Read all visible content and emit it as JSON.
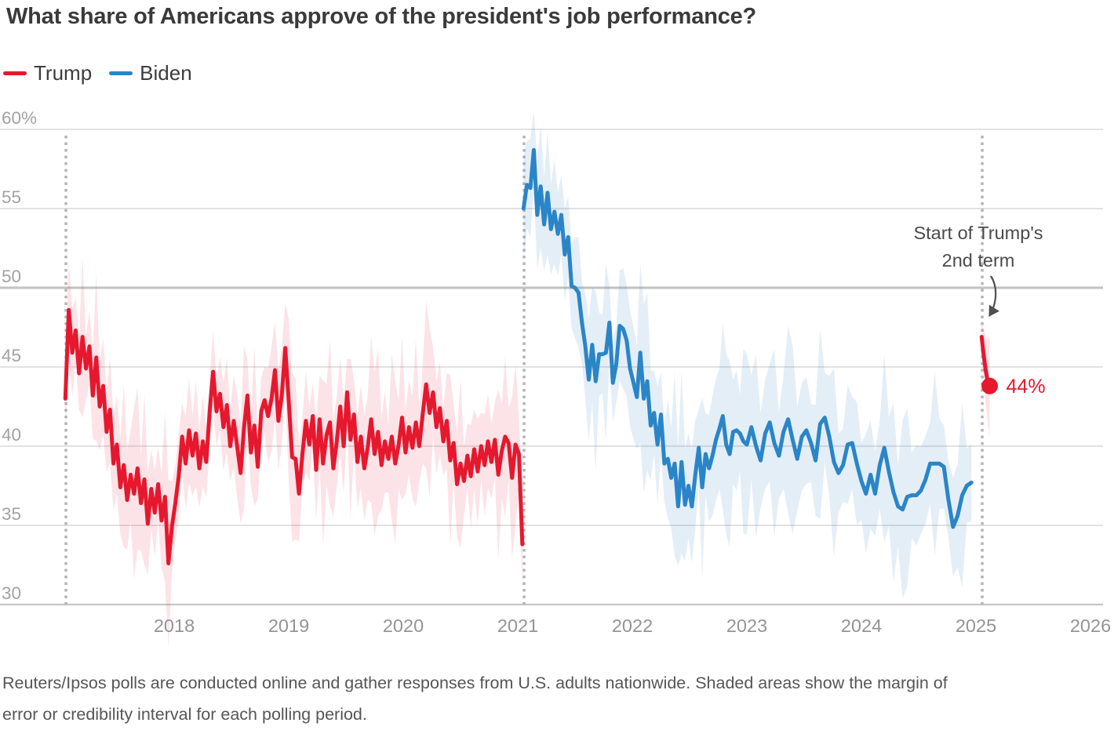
{
  "title": "What share of Americans approve of the president's job performance?",
  "legend": {
    "items": [
      {
        "label": "Trump",
        "color": "#e5182e"
      },
      {
        "label": "Biden",
        "color": "#2a85c7"
      }
    ]
  },
  "footer": {
    "lines": [
      "Reuters/Ipsos polls are conducted online and gather responses from U.S. adults nationwide. Shaded areas show the margin of",
      "error or credibility interval for each polling period."
    ]
  },
  "chart_data": {
    "type": "line",
    "title": "What share of Americans approve of the president's job performance?",
    "xlabel": "",
    "ylabel": "",
    "xlim": [
      2016.97,
      2026.1
    ],
    "ylim": [
      30,
      60
    ],
    "grid": "horizontal",
    "legend_position": "top-left",
    "y_ticks": [
      {
        "value": 60,
        "label": "60%"
      },
      {
        "value": 55,
        "label": "55"
      },
      {
        "value": 50,
        "label": "50"
      },
      {
        "value": 45,
        "label": "45"
      },
      {
        "value": 40,
        "label": "40"
      },
      {
        "value": 35,
        "label": "35"
      },
      {
        "value": 30,
        "label": "30"
      }
    ],
    "x_ticks": [
      {
        "value": 2018,
        "label": "2018"
      },
      {
        "value": 2019,
        "label": "2019"
      },
      {
        "value": 2020,
        "label": "2020"
      },
      {
        "value": 2021,
        "label": "2021"
      },
      {
        "value": 2022,
        "label": "2022"
      },
      {
        "value": 2023,
        "label": "2023"
      },
      {
        "value": 2024,
        "label": "2024"
      },
      {
        "value": 2025,
        "label": "2025"
      },
      {
        "value": 2026,
        "label": "2026"
      }
    ],
    "term_start_lines": [
      2017.055,
      2021.055,
      2025.055
    ],
    "annotation": {
      "text_lines": [
        "Start of Trump's",
        "2nd term"
      ],
      "points_to": "start of Trump 2nd-term series",
      "color": "#4a4a4a"
    },
    "end_label": {
      "text": "44%",
      "value": 44,
      "color": "#e5182e"
    },
    "note": "Shaded areas show the margin of error or credibility interval for each polling period.",
    "series": [
      {
        "name": "Trump",
        "color": "#e5182e",
        "band_color": "rgba(232,60,85,0.14)",
        "band": {
          "base": 2.0,
          "jitter": 1.7,
          "grow": 0
        },
        "points": [
          [
            2017.05,
            43.0
          ],
          [
            2017.08,
            48.6
          ],
          [
            2017.11,
            45.9
          ],
          [
            2017.14,
            47.3
          ],
          [
            2017.17,
            44.6
          ],
          [
            2017.2,
            46.9
          ],
          [
            2017.23,
            44.9
          ],
          [
            2017.26,
            46.3
          ],
          [
            2017.29,
            43.2
          ],
          [
            2017.32,
            45.6
          ],
          [
            2017.35,
            42.5
          ],
          [
            2017.38,
            43.8
          ],
          [
            2017.41,
            40.9
          ],
          [
            2017.44,
            42.3
          ],
          [
            2017.47,
            38.9
          ],
          [
            2017.5,
            40.1
          ],
          [
            2017.53,
            37.4
          ],
          [
            2017.56,
            38.8
          ],
          [
            2017.59,
            36.6
          ],
          [
            2017.62,
            38.2
          ],
          [
            2017.65,
            37.0
          ],
          [
            2017.68,
            38.6
          ],
          [
            2017.71,
            36.4
          ],
          [
            2017.74,
            37.9
          ],
          [
            2017.77,
            35.1
          ],
          [
            2017.8,
            37.3
          ],
          [
            2017.83,
            35.8
          ],
          [
            2017.86,
            37.6
          ],
          [
            2017.89,
            35.3
          ],
          [
            2017.92,
            36.8
          ],
          [
            2017.95,
            32.6
          ],
          [
            2017.98,
            34.9
          ],
          [
            2018.01,
            36.4
          ],
          [
            2018.04,
            38.1
          ],
          [
            2018.07,
            40.6
          ],
          [
            2018.1,
            38.9
          ],
          [
            2018.13,
            41.0
          ],
          [
            2018.16,
            39.4
          ],
          [
            2018.19,
            40.8
          ],
          [
            2018.22,
            38.6
          ],
          [
            2018.25,
            40.3
          ],
          [
            2018.28,
            39.0
          ],
          [
            2018.31,
            42.2
          ],
          [
            2018.34,
            44.7
          ],
          [
            2018.37,
            42.2
          ],
          [
            2018.4,
            43.3
          ],
          [
            2018.43,
            41.2
          ],
          [
            2018.46,
            42.6
          ],
          [
            2018.49,
            40.0
          ],
          [
            2018.52,
            41.6
          ],
          [
            2018.55,
            40.0
          ],
          [
            2018.58,
            38.3
          ],
          [
            2018.61,
            41.2
          ],
          [
            2018.64,
            43.2
          ],
          [
            2018.67,
            39.6
          ],
          [
            2018.7,
            41.3
          ],
          [
            2018.73,
            38.7
          ],
          [
            2018.76,
            42.2
          ],
          [
            2018.79,
            42.9
          ],
          [
            2018.82,
            41.9
          ],
          [
            2018.85,
            43.0
          ],
          [
            2018.88,
            44.8
          ],
          [
            2018.91,
            41.6
          ],
          [
            2018.94,
            43.2
          ],
          [
            2018.97,
            46.2
          ],
          [
            2019.0,
            42.9
          ],
          [
            2019.03,
            39.3
          ],
          [
            2019.06,
            39.2
          ],
          [
            2019.09,
            37.0
          ],
          [
            2019.12,
            39.5
          ],
          [
            2019.15,
            41.6
          ],
          [
            2019.18,
            40.1
          ],
          [
            2019.21,
            41.9
          ],
          [
            2019.24,
            38.5
          ],
          [
            2019.27,
            41.7
          ],
          [
            2019.3,
            38.9
          ],
          [
            2019.33,
            40.7
          ],
          [
            2019.36,
            41.5
          ],
          [
            2019.39,
            38.6
          ],
          [
            2019.42,
            40.3
          ],
          [
            2019.45,
            42.5
          ],
          [
            2019.48,
            40.0
          ],
          [
            2019.51,
            43.4
          ],
          [
            2019.54,
            40.4
          ],
          [
            2019.57,
            42.0
          ],
          [
            2019.6,
            39.0
          ],
          [
            2019.63,
            40.6
          ],
          [
            2019.66,
            38.6
          ],
          [
            2019.69,
            39.9
          ],
          [
            2019.72,
            41.7
          ],
          [
            2019.75,
            39.5
          ],
          [
            2019.78,
            40.9
          ],
          [
            2019.81,
            38.8
          ],
          [
            2019.84,
            40.3
          ],
          [
            2019.87,
            39.2
          ],
          [
            2019.9,
            40.6
          ],
          [
            2019.93,
            38.9
          ],
          [
            2019.96,
            40.1
          ],
          [
            2019.99,
            41.8
          ],
          [
            2020.02,
            39.6
          ],
          [
            2020.05,
            41.2
          ],
          [
            2020.08,
            39.9
          ],
          [
            2020.11,
            41.5
          ],
          [
            2020.14,
            40.0
          ],
          [
            2020.17,
            42.0
          ],
          [
            2020.2,
            43.9
          ],
          [
            2020.23,
            42.1
          ],
          [
            2020.26,
            43.4
          ],
          [
            2020.29,
            41.2
          ],
          [
            2020.32,
            42.4
          ],
          [
            2020.35,
            40.3
          ],
          [
            2020.38,
            41.6
          ],
          [
            2020.41,
            39.1
          ],
          [
            2020.44,
            40.2
          ],
          [
            2020.47,
            37.6
          ],
          [
            2020.5,
            38.9
          ],
          [
            2020.53,
            37.8
          ],
          [
            2020.56,
            39.4
          ],
          [
            2020.59,
            38.1
          ],
          [
            2020.62,
            39.8
          ],
          [
            2020.65,
            38.4
          ],
          [
            2020.68,
            40.0
          ],
          [
            2020.71,
            38.8
          ],
          [
            2020.74,
            40.3
          ],
          [
            2020.77,
            39.0
          ],
          [
            2020.8,
            40.4
          ],
          [
            2020.83,
            38.2
          ],
          [
            2020.86,
            39.7
          ],
          [
            2020.89,
            40.6
          ],
          [
            2020.92,
            40.2
          ],
          [
            2020.95,
            38.0
          ],
          [
            2020.98,
            40.1
          ],
          [
            2021.01,
            39.5
          ],
          [
            2021.04,
            33.8
          ]
        ]
      },
      {
        "name": "Biden",
        "color": "#2a85c7",
        "band_color": "rgba(72,142,198,0.15)",
        "band": {
          "base": 2.3,
          "jitter": 2.0,
          "grow": 0
        },
        "points": [
          [
            2021.05,
            55.0
          ],
          [
            2021.08,
            56.5
          ],
          [
            2021.11,
            56.3
          ],
          [
            2021.14,
            58.7
          ],
          [
            2021.17,
            54.6
          ],
          [
            2021.2,
            56.4
          ],
          [
            2021.23,
            54.0
          ],
          [
            2021.26,
            56.0
          ],
          [
            2021.29,
            53.7
          ],
          [
            2021.32,
            54.8
          ],
          [
            2021.35,
            53.4
          ],
          [
            2021.38,
            54.6
          ],
          [
            2021.41,
            52.1
          ],
          [
            2021.44,
            53.2
          ],
          [
            2021.47,
            50.1
          ],
          [
            2021.5,
            50.0
          ],
          [
            2021.53,
            49.7
          ],
          [
            2021.56,
            47.8
          ],
          [
            2021.59,
            46.3
          ],
          [
            2021.62,
            44.2
          ],
          [
            2021.65,
            46.4
          ],
          [
            2021.68,
            44.1
          ],
          [
            2021.71,
            45.8
          ],
          [
            2021.74,
            45.8
          ],
          [
            2021.77,
            45.9
          ],
          [
            2021.8,
            47.8
          ],
          [
            2021.83,
            44.0
          ],
          [
            2021.86,
            45.2
          ],
          [
            2021.89,
            47.6
          ],
          [
            2021.92,
            47.4
          ],
          [
            2021.95,
            46.7
          ],
          [
            2021.98,
            44.9
          ],
          [
            2022.01,
            44.0
          ],
          [
            2022.04,
            43.1
          ],
          [
            2022.07,
            45.9
          ],
          [
            2022.1,
            43.0
          ],
          [
            2022.13,
            44.1
          ],
          [
            2022.16,
            41.3
          ],
          [
            2022.19,
            42.1
          ],
          [
            2022.22,
            40.1
          ],
          [
            2022.25,
            42.0
          ],
          [
            2022.28,
            38.9
          ],
          [
            2022.31,
            39.2
          ],
          [
            2022.34,
            38.0
          ],
          [
            2022.37,
            38.9
          ],
          [
            2022.4,
            36.2
          ],
          [
            2022.43,
            39.0
          ],
          [
            2022.46,
            36.3
          ],
          [
            2022.49,
            37.5
          ],
          [
            2022.52,
            36.2
          ],
          [
            2022.55,
            38.2
          ],
          [
            2022.58,
            39.9
          ],
          [
            2022.61,
            37.4
          ],
          [
            2022.64,
            39.5
          ],
          [
            2022.67,
            38.6
          ],
          [
            2022.7,
            39.4
          ],
          [
            2022.73,
            40.4
          ],
          [
            2022.76,
            41.1
          ],
          [
            2022.79,
            41.9
          ],
          [
            2022.82,
            40.1
          ],
          [
            2022.85,
            39.5
          ],
          [
            2022.88,
            40.9
          ],
          [
            2022.91,
            41.0
          ],
          [
            2022.94,
            40.8
          ],
          [
            2022.97,
            40.3
          ],
          [
            2023.0,
            40.1
          ],
          [
            2023.04,
            41.2
          ],
          [
            2023.08,
            40.0
          ],
          [
            2023.12,
            39.1
          ],
          [
            2023.16,
            40.8
          ],
          [
            2023.2,
            41.5
          ],
          [
            2023.24,
            40.2
          ],
          [
            2023.28,
            39.4
          ],
          [
            2023.32,
            40.9
          ],
          [
            2023.36,
            41.7
          ],
          [
            2023.4,
            40.4
          ],
          [
            2023.44,
            39.2
          ],
          [
            2023.48,
            40.6
          ],
          [
            2023.52,
            41.0
          ],
          [
            2023.56,
            40.2
          ],
          [
            2023.6,
            39.1
          ],
          [
            2023.64,
            41.4
          ],
          [
            2023.68,
            41.8
          ],
          [
            2023.72,
            40.6
          ],
          [
            2023.76,
            39.0
          ],
          [
            2023.8,
            38.3
          ],
          [
            2023.84,
            38.8
          ],
          [
            2023.88,
            40.1
          ],
          [
            2023.92,
            40.2
          ],
          [
            2023.96,
            38.9
          ],
          [
            2024.0,
            37.8
          ],
          [
            2024.04,
            37.0
          ],
          [
            2024.08,
            38.2
          ],
          [
            2024.12,
            37.0
          ],
          [
            2024.16,
            38.8
          ],
          [
            2024.2,
            39.9
          ],
          [
            2024.24,
            38.4
          ],
          [
            2024.28,
            37.1
          ],
          [
            2024.32,
            36.2
          ],
          [
            2024.36,
            36.0
          ],
          [
            2024.4,
            36.8
          ],
          [
            2024.44,
            36.9
          ],
          [
            2024.48,
            36.9
          ],
          [
            2024.52,
            37.2
          ],
          [
            2024.56,
            37.9
          ],
          [
            2024.6,
            38.9
          ],
          [
            2024.64,
            38.9
          ],
          [
            2024.68,
            38.9
          ],
          [
            2024.72,
            38.7
          ],
          [
            2024.76,
            36.6
          ],
          [
            2024.8,
            34.9
          ],
          [
            2024.84,
            35.6
          ],
          [
            2024.88,
            36.9
          ],
          [
            2024.92,
            37.5
          ],
          [
            2024.96,
            37.7
          ]
        ]
      },
      {
        "name": "Trump 2nd term",
        "color": "#e5182e",
        "band_color": "rgba(232,60,85,0.14)",
        "band": {
          "base": 1.0,
          "jitter": 0,
          "grow": 0.55
        },
        "end_dot": true,
        "points": [
          [
            2025.05,
            46.9
          ],
          [
            2025.065,
            45.9
          ],
          [
            2025.085,
            44.8
          ],
          [
            2025.103,
            44.1
          ],
          [
            2025.12,
            43.8
          ]
        ]
      }
    ]
  }
}
